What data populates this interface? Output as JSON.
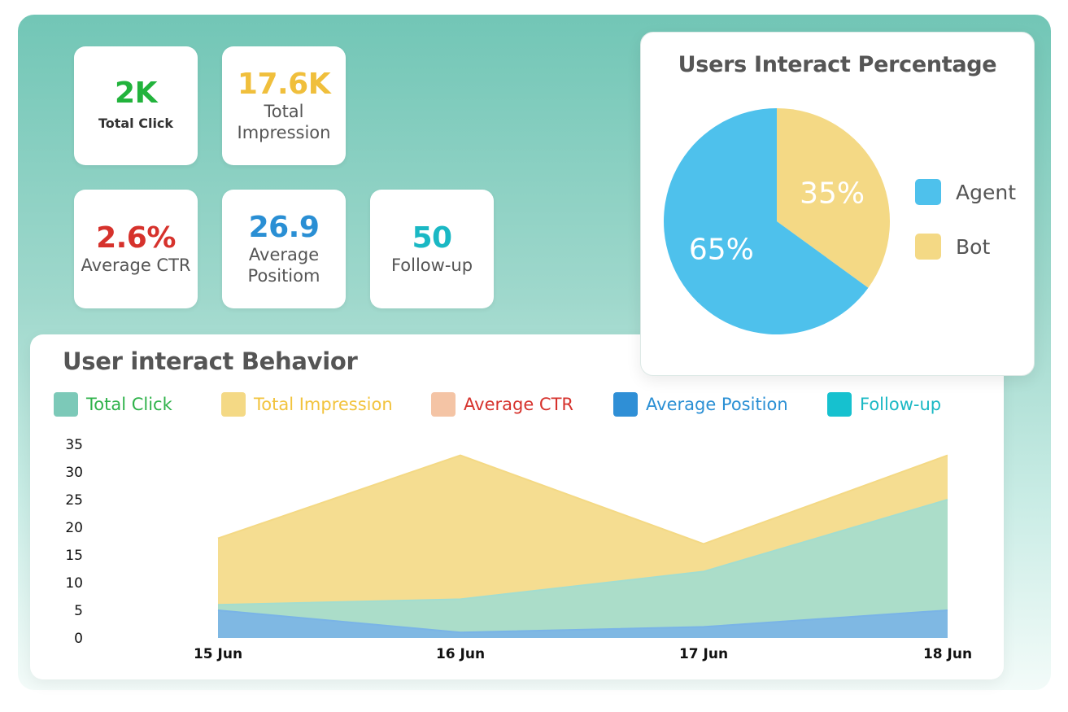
{
  "kpis": {
    "total_click": {
      "value": "2K",
      "label": "Total Click",
      "color": "#22b33c"
    },
    "total_impression": {
      "value": "17.6K",
      "label": "Total Impression",
      "color": "#f0bf3c"
    },
    "average_ctr": {
      "value": "2.6%",
      "label": "Average CTR",
      "color": "#d6322c"
    },
    "average_position": {
      "value": "26.9",
      "label": "Average Positiom",
      "color": "#2a8fd4"
    },
    "follow_up": {
      "value": "50",
      "label": "Follow-up",
      "color": "#1ab8c4"
    }
  },
  "pie": {
    "title": "Users Interact Percentage",
    "slices": [
      {
        "name": "Agent",
        "value": 65,
        "label": "65%",
        "color": "#4ec1ec"
      },
      {
        "name": "Bot",
        "value": 35,
        "label": "35%",
        "color": "#f4d985"
      }
    ]
  },
  "behavior": {
    "title": "User interact Behavior",
    "legend": [
      {
        "name": "Total Click",
        "color": "#7cc9b8",
        "text_color": "#2fb24a"
      },
      {
        "name": "Total Impression",
        "color": "#f4d985",
        "text_color": "#f2c33d"
      },
      {
        "name": "Average CTR",
        "color": "#f4c4a5",
        "text_color": "#d6322c"
      },
      {
        "name": "Average Position",
        "color": "#2f8fd6",
        "text_color": "#2a8fd4"
      },
      {
        "name": "Follow-up",
        "color": "#16c1cf",
        "text_color": "#1ab8c4"
      }
    ]
  },
  "chart_data": [
    {
      "type": "pie",
      "title": "Users Interact Percentage",
      "categories": [
        "Agent",
        "Bot"
      ],
      "values": [
        65,
        35
      ],
      "legend": "right"
    },
    {
      "type": "area",
      "title": "User interact Behavior",
      "categories": [
        "15 Jun",
        "16 Jun",
        "17 Jun",
        "18 Jun"
      ],
      "yticks": [
        0,
        5,
        10,
        15,
        20,
        25,
        30,
        35
      ],
      "ylim": [
        0,
        35
      ],
      "series": [
        {
          "name": "Total Impression",
          "values": [
            18,
            33,
            17,
            33
          ],
          "color": "#f4d985"
        },
        {
          "name": "Total Click",
          "values": [
            6,
            7,
            12,
            25
          ],
          "color": "#a3ddcf"
        },
        {
          "name": "Average Position",
          "values": [
            5,
            1,
            2,
            5
          ],
          "color": "#7ab4e6"
        }
      ],
      "legend": "top",
      "grid": false
    }
  ]
}
